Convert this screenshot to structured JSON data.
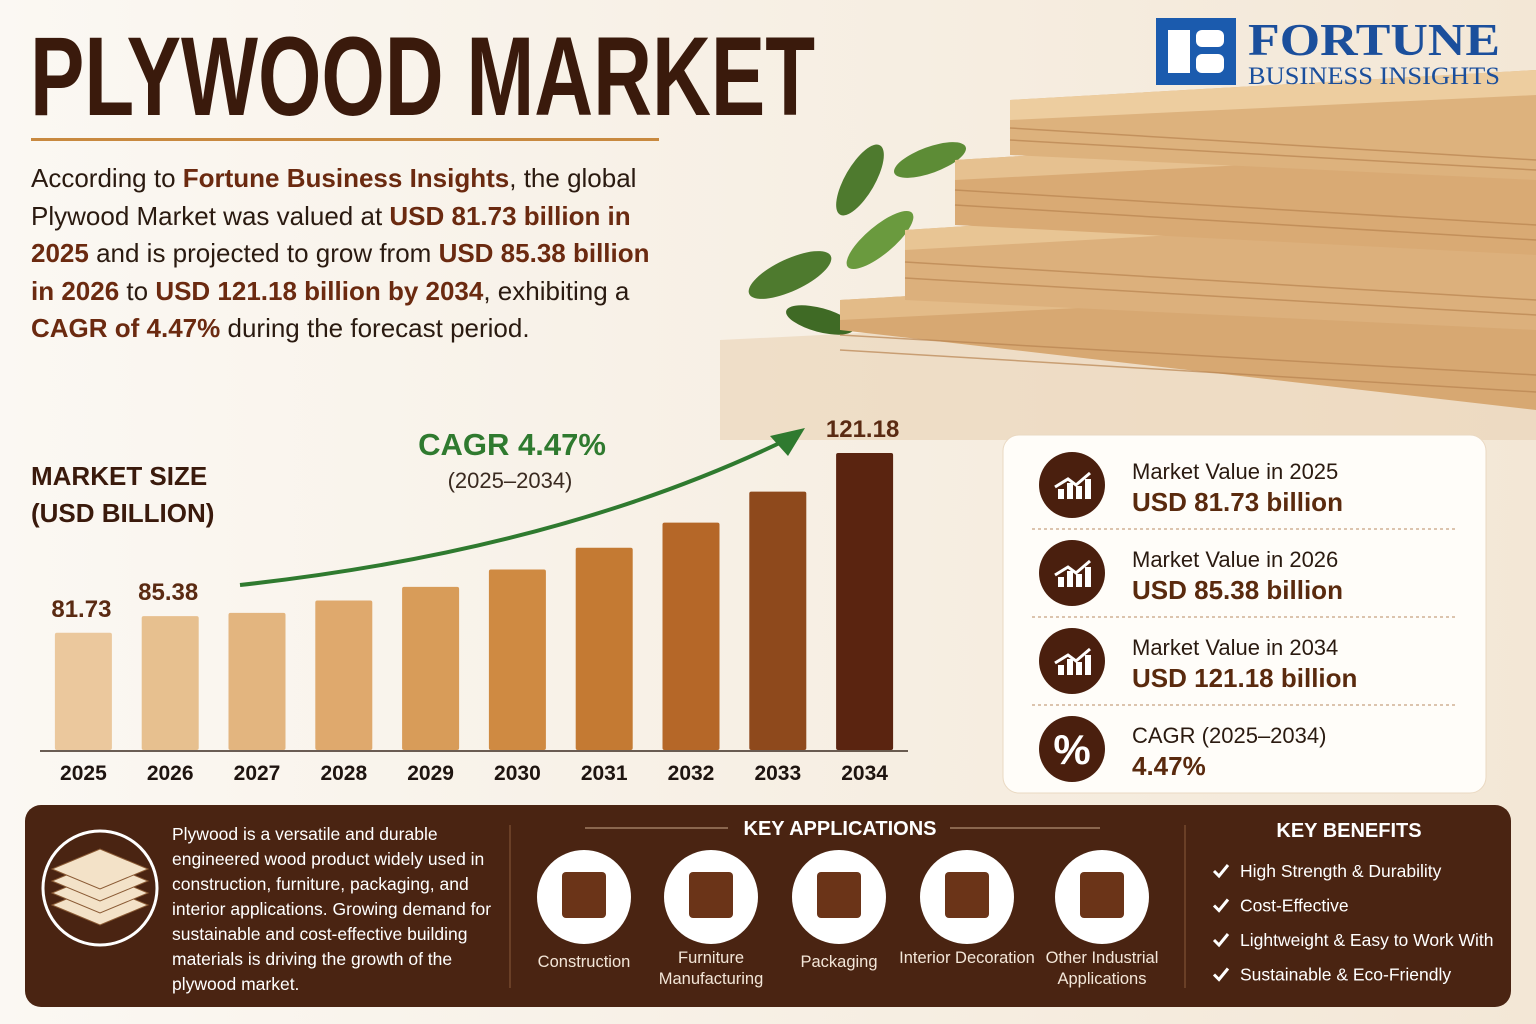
{
  "header": {
    "title": "PLYWOOD MARKET",
    "logo_main": "FORTUNE",
    "logo_sub": "BUSINESS INSIGHTS"
  },
  "intro": [
    {
      "text": "According to ",
      "bold": false
    },
    {
      "text": "Fortune Business Insights",
      "bold": true
    },
    {
      "text": ", the global Plywood Market was valued at ",
      "bold": false
    },
    {
      "text": "USD 81.73 billion in 2025",
      "bold": true
    },
    {
      "text": " and is projected to grow from ",
      "bold": false
    },
    {
      "text": "USD 85.38 billion in 2026",
      "bold": true
    },
    {
      "text": " to ",
      "bold": false
    },
    {
      "text": "USD 121.18 billion by 2034",
      "bold": true
    },
    {
      "text": ", exhibiting a ",
      "bold": false
    },
    {
      "text": "CAGR of 4.47%",
      "bold": true
    },
    {
      "text": " during the forecast period.",
      "bold": false
    }
  ],
  "chart_data": {
    "type": "bar",
    "title": "MARKET SIZE (USD BILLION)",
    "annotation": "CAGR 4.47%",
    "annotation_sub": "(2025–2034)",
    "categories": [
      "2025",
      "2026",
      "2027",
      "2028",
      "2029",
      "2030",
      "2031",
      "2032",
      "2033",
      "2034"
    ],
    "values": [
      81.73,
      85.38,
      86.1,
      88.8,
      91.8,
      95.6,
      100.4,
      105.9,
      112.7,
      121.18
    ],
    "colors": [
      "#ebc89d",
      "#e7c08f",
      "#e3b57f",
      "#dfa96d",
      "#d89c59",
      "#cf8a42",
      "#c47a33",
      "#b56728",
      "#8e491c",
      "#5a2410"
    ],
    "labeled_indices": [
      0,
      1,
      9
    ],
    "ylim": [
      56,
      125
    ]
  },
  "stats": [
    {
      "label": "Market Value in 2025",
      "value": "USD 81.73 billion",
      "icon": "chart"
    },
    {
      "label": "Market Value in 2026",
      "value": "USD 85.38 billion",
      "icon": "chart"
    },
    {
      "label": "Market Value in 2034",
      "value": "USD 121.18 billion",
      "icon": "chart"
    },
    {
      "label": "CAGR (2025–2034)",
      "value": "4.47%",
      "icon": "%"
    }
  ],
  "about": "Plywood is a versatile and durable engineered wood product widely used in construction, furniture, packaging, and interior applications. Growing demand for sustainable and cost-effective building materials is driving the growth of the plywood market.",
  "applications": {
    "title": "KEY APPLICATIONS",
    "items": [
      "Construction",
      "Furniture Manufacturing",
      "Packaging",
      "Interior Decoration",
      "Other Industrial Applications"
    ]
  },
  "benefits": {
    "title": "KEY BENEFITS",
    "items": [
      "High Strength & Durability",
      "Cost-Effective",
      "Lightweight & Easy to Work With",
      "Sustainable & Eco-Friendly"
    ]
  }
}
